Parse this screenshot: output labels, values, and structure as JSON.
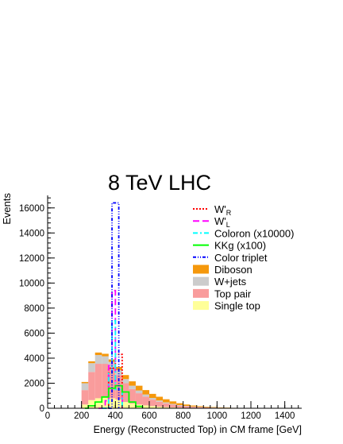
{
  "chart_data": {
    "type": "bar",
    "title": "8 TeV LHC",
    "xlabel": "Energy (Reconstructed Top) in CM frame [GeV]",
    "ylabel": "Events",
    "xlim": [
      0,
      1500
    ],
    "ylim": [
      0,
      17000
    ],
    "x_ticks": [
      0,
      200,
      400,
      600,
      800,
      1000,
      1200,
      1400
    ],
    "y_ticks": [
      0,
      2000,
      4000,
      6000,
      8000,
      10000,
      12000,
      14000,
      16000
    ],
    "bin_width": 40,
    "bins_x": [
      200,
      240,
      280,
      320,
      360,
      400,
      440,
      480,
      520,
      560,
      600,
      640,
      680,
      720,
      760,
      800,
      840,
      880,
      920,
      960,
      1000,
      1040,
      1080,
      1120,
      1160,
      1200
    ],
    "stacked_series": [
      {
        "name": "Single top",
        "color": "#ffff99",
        "values": [
          300,
          650,
          800,
          850,
          800,
          700,
          500,
          380,
          300,
          230,
          170,
          120,
          90,
          70,
          50,
          35,
          25,
          18,
          12,
          8,
          6,
          4,
          3,
          2,
          1,
          1
        ]
      },
      {
        "name": "Top pair",
        "color": "#f99c9c",
        "values": [
          1150,
          2250,
          2750,
          2700,
          2400,
          1950,
          1500,
          1150,
          900,
          700,
          520,
          400,
          300,
          220,
          160,
          120,
          90,
          70,
          55,
          40,
          30,
          22,
          15,
          10,
          8,
          5
        ]
      },
      {
        "name": "W+jets",
        "color": "#cccccc",
        "values": [
          550,
          700,
          700,
          600,
          500,
          400,
          330,
          270,
          220,
          170,
          130,
          100,
          80,
          60,
          45,
          35,
          25,
          20,
          15,
          12,
          9,
          7,
          5,
          4,
          3,
          2
        ]
      },
      {
        "name": "Diboson",
        "color": "#f5980c",
        "values": [
          100,
          150,
          200,
          200,
          200,
          250,
          320,
          350,
          380,
          350,
          330,
          300,
          250,
          200,
          150,
          110,
          80,
          60,
          45,
          35,
          25,
          18,
          12,
          8,
          5,
          3
        ]
      }
    ],
    "signals": [
      {
        "name": "W'_R",
        "color": "#ff0000",
        "dash": "2,2",
        "points": [
          [
            320,
            0
          ],
          [
            360,
            3200
          ],
          [
            400,
            4300
          ],
          [
            440,
            0
          ]
        ]
      },
      {
        "name": "W'_L",
        "color": "#ff00ff",
        "dash": "8,4",
        "points": [
          [
            300,
            0
          ],
          [
            340,
            600
          ],
          [
            360,
            3400
          ],
          [
            380,
            9400
          ],
          [
            400,
            1800
          ],
          [
            440,
            0
          ]
        ]
      },
      {
        "name": "Coloron (x10000)",
        "color": "#00ffff",
        "dash": "6,3,2,3",
        "points": [
          [
            320,
            0
          ],
          [
            360,
            2800
          ],
          [
            380,
            7000
          ],
          [
            400,
            1500
          ],
          [
            440,
            0
          ]
        ]
      },
      {
        "name": "KKg (x100)",
        "color": "#00ff00",
        "dash": "",
        "points": [
          [
            220,
            0
          ],
          [
            240,
            200
          ],
          [
            280,
            500
          ],
          [
            320,
            900
          ],
          [
            360,
            1600
          ],
          [
            400,
            1800
          ],
          [
            440,
            1300
          ],
          [
            480,
            500
          ],
          [
            520,
            150
          ],
          [
            560,
            0
          ]
        ]
      },
      {
        "name": "Color triplet",
        "color": "#0000ff",
        "dash": "4,2,1,2,1,2",
        "points": [
          [
            360,
            0
          ],
          [
            380,
            16400
          ],
          [
            400,
            16400
          ],
          [
            420,
            0
          ]
        ]
      }
    ],
    "legend": {
      "placement": "top-right",
      "entries": [
        {
          "kind": "line",
          "name_main": "W'",
          "name_sub": "R",
          "color": "#ff0000",
          "dash": "2,2"
        },
        {
          "kind": "line",
          "name_main": "W'",
          "name_sub": "L",
          "color": "#ff00ff",
          "dash": "8,4"
        },
        {
          "kind": "line",
          "name_main": "Coloron (x10000)",
          "name_sub": "",
          "color": "#00ffff",
          "dash": "6,3,2,3"
        },
        {
          "kind": "line",
          "name_main": "KKg (x100)",
          "name_sub": "",
          "color": "#00ff00",
          "dash": ""
        },
        {
          "kind": "line",
          "name_main": "Color triplet",
          "name_sub": "",
          "color": "#0000ff",
          "dash": "4,2,1,2,1,2"
        },
        {
          "kind": "box",
          "name_main": "Diboson",
          "name_sub": "",
          "color": "#f5980c"
        },
        {
          "kind": "box",
          "name_main": "W+jets",
          "name_sub": "",
          "color": "#cccccc"
        },
        {
          "kind": "box",
          "name_main": "Top pair",
          "name_sub": "",
          "color": "#f99c9c"
        },
        {
          "kind": "box",
          "name_main": "Single top",
          "name_sub": "",
          "color": "#ffff99"
        }
      ]
    }
  }
}
